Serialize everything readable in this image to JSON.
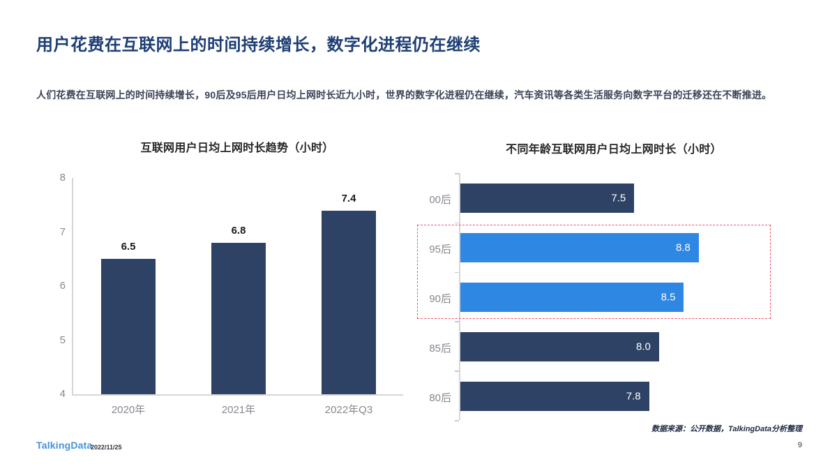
{
  "header": {
    "title": "用户花费在互联网上的时间持续增长，数字化进程仍在继续",
    "subtitle": "人们花费在互联网上的时间持续增长，90后及95后用户日均上网时长近九小时，世界的数字化进程仍在继续，汽车资讯等各类生活服务向数字平台的迁移还在不断推进。"
  },
  "colors": {
    "navy_bar": "#2d4265",
    "highlight_blue_bar": "#2f87e4",
    "accent_red_dashed": "#e8516d",
    "title_blue": "#1e3e74",
    "axis_gray": "#85888d"
  },
  "chart_data": [
    {
      "id": "trend",
      "type": "bar",
      "orientation": "vertical",
      "title": "互联网用户日均上网时长趋势（小时）",
      "categories": [
        "2020年",
        "2021年",
        "2022年Q3"
      ],
      "values": [
        6.5,
        6.8,
        7.4
      ],
      "value_labels": [
        "6.5",
        "6.8",
        "7.4"
      ],
      "ylim": [
        4,
        8
      ],
      "yticks": [
        8,
        7,
        6,
        5,
        4
      ],
      "grid": false,
      "bar_color": "#2d4265",
      "legend": "none"
    },
    {
      "id": "age",
      "type": "bar",
      "orientation": "horizontal",
      "title": "不同年龄互联网用户日均上网时长（小时）",
      "categories": [
        "00后",
        "95后",
        "90后",
        "85后",
        "80后"
      ],
      "values": [
        7.5,
        8.8,
        8.5,
        8.0,
        7.8
      ],
      "value_labels": [
        "7.5",
        "8.8",
        "8.5",
        "8.0",
        "7.8"
      ],
      "xlim": [
        4,
        10.6
      ],
      "grid": false,
      "bar_colors": [
        "#2d4265",
        "#2f87e4",
        "#2f87e4",
        "#2d4265",
        "#2d4265"
      ],
      "highlighted_categories": [
        "95后",
        "90后"
      ],
      "annotation": "红色虚线框标注95后与90后",
      "legend": "none"
    }
  ],
  "footer": {
    "logo": "TalkingData",
    "date": "2022/11/25",
    "source_note": "数据来源：公开数据，TalkingData分析整理",
    "page_number": "9"
  }
}
